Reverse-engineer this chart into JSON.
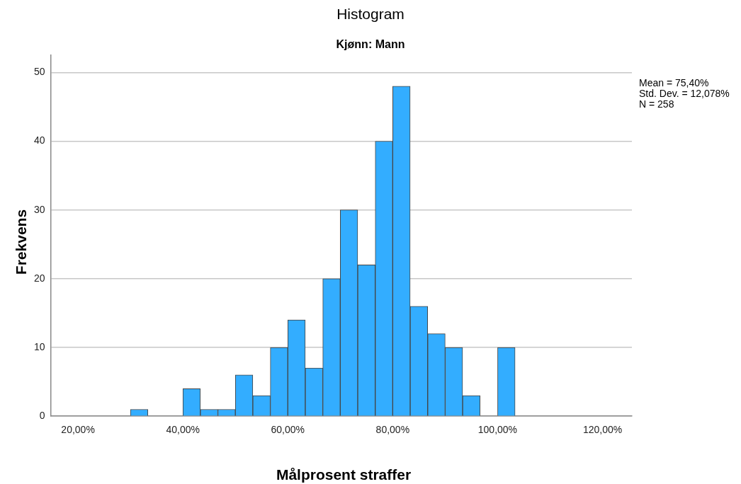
{
  "chart_data": {
    "type": "histogram",
    "title": "Histogram",
    "subtitle": "Kjønn: Mann",
    "xlabel": "Målprosent straffer",
    "ylabel": "Frekvens",
    "annotations": [
      "Mean = 75,40%",
      "Std. Dev. = 12,078%",
      "N = 258"
    ],
    "bins": [
      30,
      33.33,
      36.67,
      40,
      43.33,
      46.67,
      50,
      53.33,
      56.67,
      60,
      63.33,
      66.67,
      70,
      73.33,
      76.67,
      80,
      83.33,
      86.67,
      90,
      93.33,
      96.67,
      100,
      103.33
    ],
    "values": [
      1,
      0,
      0,
      4,
      1,
      1,
      6,
      3,
      10,
      14,
      7,
      20,
      30,
      22,
      40,
      48,
      16,
      12,
      10,
      3,
      0,
      10
    ],
    "color": "#33adff",
    "xlim": [
      14.8,
      125.6
    ],
    "xticks": [
      {
        "value": 20,
        "label": "20,00%"
      },
      {
        "value": 40,
        "label": "40,00%"
      },
      {
        "value": 60,
        "label": "60,00%"
      },
      {
        "value": 80,
        "label": "80,00%"
      },
      {
        "value": 100,
        "label": "100,00%"
      },
      {
        "value": 120,
        "label": "120,00%"
      }
    ],
    "ylim": [
      0,
      52.5
    ],
    "yticks": [
      0,
      10,
      20,
      30,
      40,
      50
    ],
    "grid": "y",
    "legend": false
  }
}
